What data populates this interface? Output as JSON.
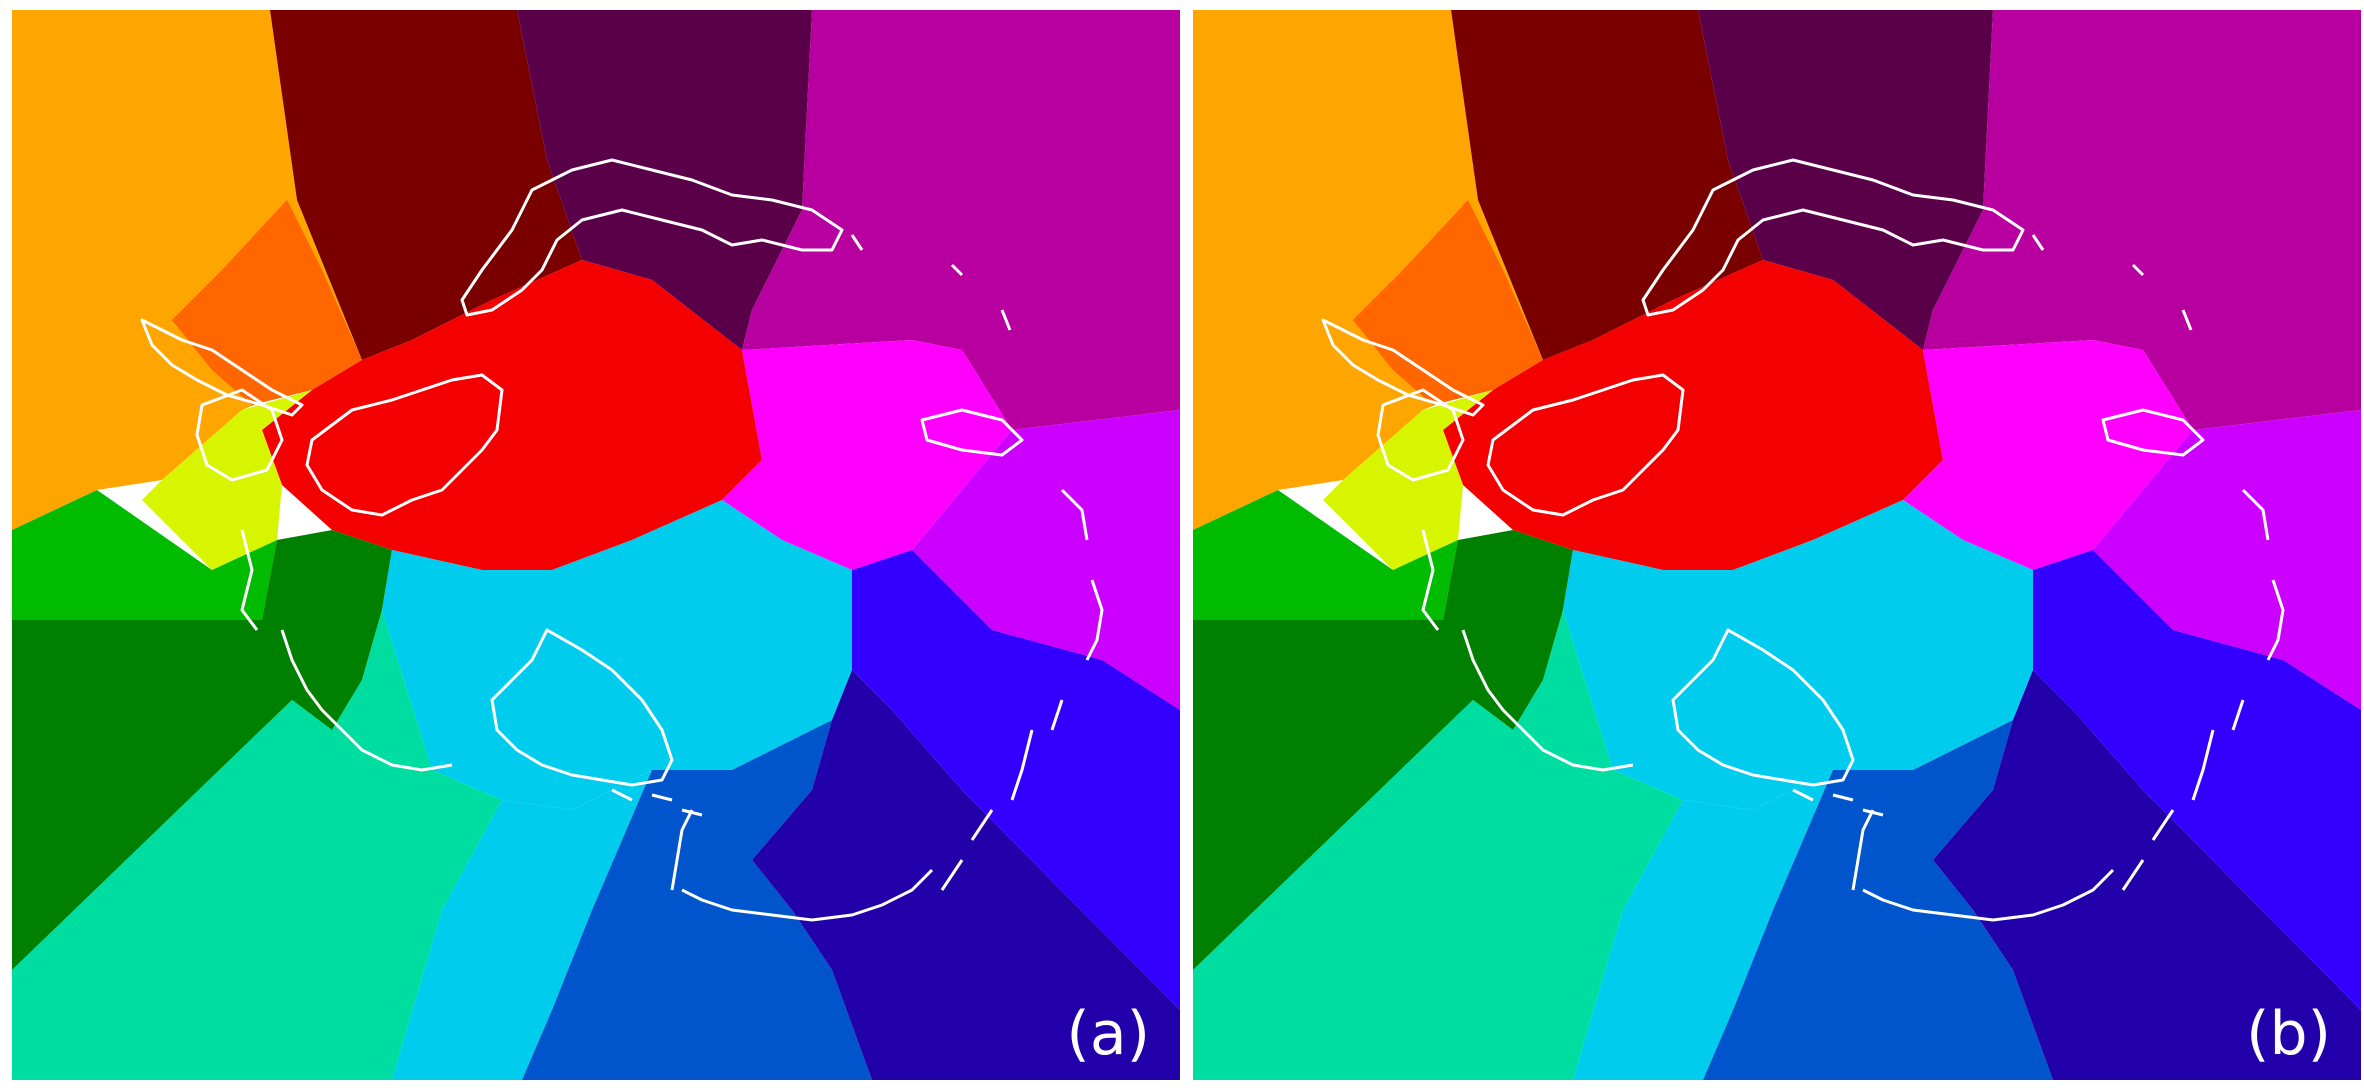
{
  "panels": [
    {
      "label": "(a)"
    },
    {
      "label": "(b)"
    }
  ],
  "colors": {
    "coastline": "#ffffff",
    "orange": "#ffa500",
    "dark_orange": "#ff6600",
    "maroon": "#7a0000",
    "purple_dark": "#5a0048",
    "magenta_dark": "#b800a0",
    "red": "#f50000",
    "yellow_green": "#d8f500",
    "green": "#00bb00",
    "dark_green": "#008000",
    "pink_magenta": "#ff00ff",
    "violet": "#cc00ff",
    "cyan": "#00ccee",
    "aquamarine": "#00dda0",
    "blue": "#0055cc",
    "dark_blue": "#2200aa",
    "bright_blue": "#3300ff"
  }
}
